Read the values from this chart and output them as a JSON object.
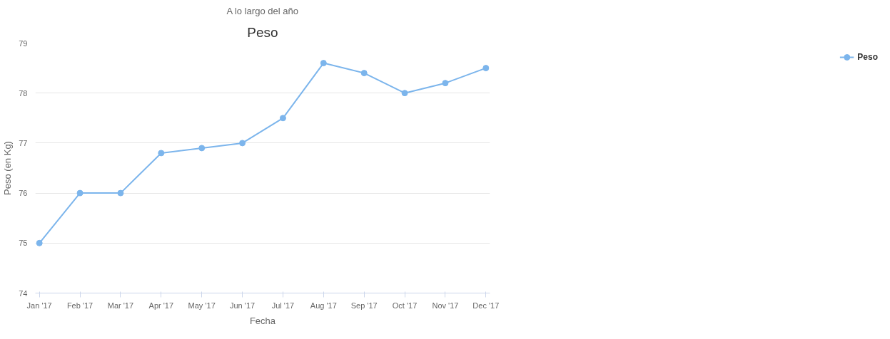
{
  "chart_data": {
    "type": "line",
    "title": "Peso",
    "subtitle": "A lo largo del año",
    "xlabel": "Fecha",
    "ylabel": "Peso (en Kg)",
    "categories": [
      "Jan '17",
      "Feb '17",
      "Mar '17",
      "Apr '17",
      "May '17",
      "Jun '17",
      "Jul '17",
      "Aug '17",
      "Sep '17",
      "Oct '17",
      "Nov '17",
      "Dec '17"
    ],
    "series": [
      {
        "name": "Peso",
        "color": "#7cb5ec",
        "values": [
          75,
          76,
          76,
          76.8,
          76.9,
          77,
          77.5,
          78.6,
          78.4,
          78.0,
          78.2,
          78.5
        ]
      }
    ],
    "ylim": [
      74,
      79
    ],
    "yticks": [
      74,
      75,
      76,
      77,
      78,
      79
    ],
    "grid": "y",
    "legend": "right",
    "marker": "circle",
    "line_style": "solid"
  }
}
